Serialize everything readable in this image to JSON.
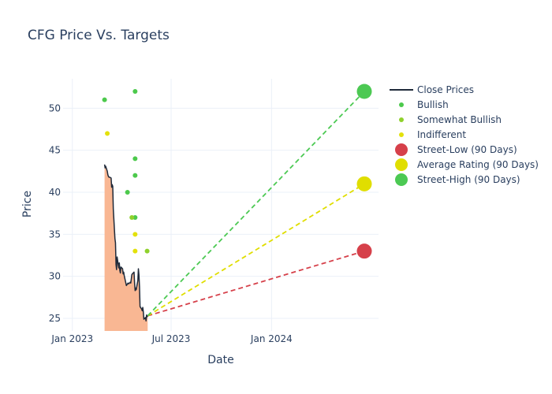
{
  "chart_data": {
    "type": "line",
    "title": "CFG Price Vs. Targets",
    "xlabel": "Date",
    "ylabel": "Price",
    "xlim": [
      "2022-12-15",
      "2024-07-15"
    ],
    "ylim": [
      23.5,
      53.5
    ],
    "x_ticks": [
      {
        "date": "2023-01-01",
        "label": "Jan 2023"
      },
      {
        "date": "2023-07-01",
        "label": "Jul 2023"
      },
      {
        "date": "2024-01-01",
        "label": "Jan 2024"
      }
    ],
    "y_ticks": [
      25,
      30,
      35,
      40,
      45,
      50
    ],
    "grid": true,
    "legend_position": "top-right",
    "colors": {
      "close": "#1f2a3a",
      "fill": "#f9b793",
      "bullish": "#4cc94c",
      "somewhat_bullish": "#8fd12c",
      "indifferent": "#e3e10b",
      "street_low": "#d6404a",
      "average": "#e0de00",
      "street_high": "#4cc953"
    },
    "close_prices": [
      [
        "2023-03-01",
        43.3
      ],
      [
        "2023-03-02",
        42.9
      ],
      [
        "2023-03-03",
        43.1
      ],
      [
        "2023-03-06",
        42.5
      ],
      [
        "2023-03-07",
        42.1
      ],
      [
        "2023-03-08",
        41.9
      ],
      [
        "2023-03-09",
        41.8
      ],
      [
        "2023-03-10",
        41.8
      ],
      [
        "2023-03-13",
        41.7
      ],
      [
        "2023-03-14",
        40.6
      ],
      [
        "2023-03-15",
        40.9
      ],
      [
        "2023-03-16",
        40.7
      ],
      [
        "2023-03-17",
        38.0
      ],
      [
        "2023-03-20",
        34.5
      ],
      [
        "2023-03-21",
        34.0
      ],
      [
        "2023-03-22",
        31.4
      ],
      [
        "2023-03-23",
        30.8
      ],
      [
        "2023-03-24",
        32.3
      ],
      [
        "2023-03-27",
        31.0
      ],
      [
        "2023-03-28",
        31.6
      ],
      [
        "2023-03-29",
        30.7
      ],
      [
        "2023-03-30",
        30.4
      ],
      [
        "2023-03-31",
        31.1
      ],
      [
        "2023-04-03",
        30.9
      ],
      [
        "2023-04-04",
        30.3
      ],
      [
        "2023-04-05",
        30.5
      ],
      [
        "2023-04-06",
        30.1
      ],
      [
        "2023-04-10",
        28.9
      ],
      [
        "2023-04-11",
        29.0
      ],
      [
        "2023-04-12",
        29.1
      ],
      [
        "2023-04-13",
        29.2
      ],
      [
        "2023-04-14",
        29.1
      ],
      [
        "2023-04-17",
        29.3
      ],
      [
        "2023-04-18",
        29.2
      ],
      [
        "2023-04-19",
        29.7
      ],
      [
        "2023-04-20",
        30.2
      ],
      [
        "2023-04-21",
        30.3
      ],
      [
        "2023-04-24",
        30.5
      ],
      [
        "2023-04-25",
        29.2
      ],
      [
        "2023-04-26",
        28.3
      ],
      [
        "2023-04-27",
        28.6
      ],
      [
        "2023-04-28",
        28.4
      ],
      [
        "2023-05-01",
        29.5
      ],
      [
        "2023-05-02",
        30.9
      ],
      [
        "2023-05-03",
        30.2
      ],
      [
        "2023-05-04",
        28.8
      ],
      [
        "2023-05-05",
        26.4
      ],
      [
        "2023-05-08",
        26.1
      ],
      [
        "2023-05-09",
        25.9
      ],
      [
        "2023-05-10",
        26.3
      ],
      [
        "2023-05-11",
        25.8
      ],
      [
        "2023-05-12",
        24.9
      ],
      [
        "2023-05-15",
        25.1
      ],
      [
        "2023-05-16",
        24.7
      ],
      [
        "2023-05-17",
        25.4
      ],
      [
        "2023-05-18",
        25.2
      ],
      [
        "2023-05-19",
        25.3
      ]
    ],
    "series": [
      {
        "name": "Close Prices"
      },
      {
        "name": "Bullish",
        "points": [
          [
            "2023-03-01",
            51
          ],
          [
            "2023-04-12",
            40
          ],
          [
            "2023-04-26",
            52
          ],
          [
            "2023-04-26",
            44
          ],
          [
            "2023-04-26",
            42
          ],
          [
            "2023-04-26",
            37
          ]
        ]
      },
      {
        "name": "Somewhat Bullish",
        "points": [
          [
            "2023-04-20",
            37
          ],
          [
            "2023-05-18",
            33
          ]
        ]
      },
      {
        "name": "Indifferent",
        "points": [
          [
            "2023-03-06",
            47
          ],
          [
            "2023-04-26",
            35
          ],
          [
            "2023-04-26",
            33
          ]
        ]
      },
      {
        "name": "Street-Low (90 Days)",
        "start": [
          "2023-05-19",
          25.3
        ],
        "end": [
          "2024-06-19",
          33
        ]
      },
      {
        "name": "Average Rating (90 Days)",
        "start": [
          "2023-05-19",
          25.3
        ],
        "end": [
          "2024-06-19",
          41
        ]
      },
      {
        "name": "Street-High (90 Days)",
        "start": [
          "2023-05-19",
          25.3
        ],
        "end": [
          "2024-06-19",
          52
        ]
      }
    ]
  }
}
